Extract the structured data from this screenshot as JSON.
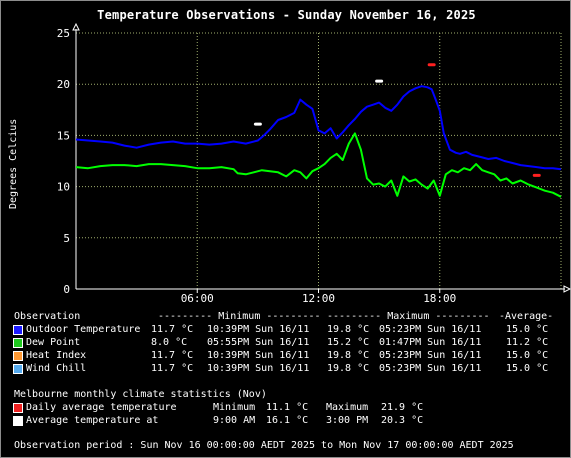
{
  "title": "Temperature Observations - Sunday November 16, 2025",
  "chart_data": {
    "type": "line",
    "title": "Temperature Observations - Sunday November 16, 2025",
    "ylabel": "Degrees Celcius",
    "xlabel": "",
    "xlim": [
      0,
      24
    ],
    "ylim": [
      0,
      25
    ],
    "x_ticks": [
      "06:00",
      "12:00",
      "18:00"
    ],
    "y_ticks": [
      "0",
      "5",
      "10",
      "15",
      "20",
      "25"
    ],
    "grid": true,
    "series": [
      {
        "name": "Outdoor Temperature",
        "color": "#0000ff",
        "x": [
          0,
          0.6,
          1.2,
          1.8,
          2.4,
          3.0,
          3.6,
          4.2,
          4.8,
          5.4,
          6.0,
          6.6,
          7.2,
          7.8,
          8.4,
          9.0,
          9.3,
          9.6,
          10.0,
          10.4,
          10.8,
          11.1,
          11.4,
          11.7,
          12.0,
          12.3,
          12.6,
          12.9,
          13.2,
          13.5,
          13.8,
          14.1,
          14.4,
          14.7,
          15.0,
          15.3,
          15.6,
          15.9,
          16.2,
          16.5,
          16.8,
          17.1,
          17.4,
          17.6,
          17.8,
          18.0,
          18.2,
          18.5,
          18.8,
          19.0,
          19.3,
          19.6,
          20.0,
          20.4,
          20.8,
          21.2,
          21.6,
          22.0,
          22.4,
          22.8,
          23.2,
          23.6,
          24.0
        ],
        "y": [
          14.6,
          14.5,
          14.4,
          14.3,
          14.0,
          13.8,
          14.1,
          14.3,
          14.4,
          14.2,
          14.2,
          14.1,
          14.2,
          14.4,
          14.2,
          14.5,
          15.0,
          15.6,
          16.5,
          16.8,
          17.2,
          18.5,
          18.0,
          17.6,
          15.5,
          15.2,
          15.7,
          14.7,
          15.3,
          16.0,
          16.6,
          17.3,
          17.8,
          18.0,
          18.2,
          17.7,
          17.4,
          18.0,
          18.8,
          19.3,
          19.6,
          19.8,
          19.7,
          19.5,
          18.5,
          17.4,
          15.2,
          13.6,
          13.3,
          13.2,
          13.4,
          13.1,
          12.9,
          12.7,
          12.8,
          12.5,
          12.3,
          12.1,
          12.0,
          11.9,
          11.8,
          11.8,
          11.7
        ]
      },
      {
        "name": "Dew Point",
        "color": "#00ff00",
        "x": [
          0,
          0.6,
          1.2,
          1.8,
          2.4,
          3.0,
          3.6,
          4.2,
          4.8,
          5.4,
          6.0,
          6.6,
          7.2,
          7.8,
          8.0,
          8.4,
          8.8,
          9.2,
          9.6,
          10.0,
          10.4,
          10.8,
          11.1,
          11.4,
          11.7,
          12.0,
          12.3,
          12.6,
          12.9,
          13.2,
          13.5,
          13.8,
          14.1,
          14.4,
          14.7,
          15.0,
          15.3,
          15.6,
          15.9,
          16.2,
          16.5,
          16.8,
          17.1,
          17.4,
          17.7,
          18.0,
          18.3,
          18.6,
          18.9,
          19.2,
          19.5,
          19.8,
          20.1,
          20.4,
          20.7,
          21.0,
          21.3,
          21.6,
          22.0,
          22.4,
          22.8,
          23.2,
          23.6,
          24.0
        ],
        "y": [
          11.9,
          11.8,
          12.0,
          12.1,
          12.1,
          12.0,
          12.2,
          12.2,
          12.1,
          12.0,
          11.8,
          11.8,
          11.9,
          11.7,
          11.3,
          11.2,
          11.4,
          11.6,
          11.5,
          11.4,
          11.0,
          11.6,
          11.4,
          10.8,
          11.5,
          11.8,
          12.2,
          12.8,
          13.2,
          12.6,
          14.2,
          15.2,
          13.6,
          10.8,
          10.2,
          10.3,
          10.0,
          10.6,
          9.1,
          11.0,
          10.5,
          10.7,
          10.2,
          9.8,
          10.6,
          9.1,
          11.2,
          11.6,
          11.4,
          11.8,
          11.6,
          12.2,
          11.6,
          11.4,
          11.2,
          10.6,
          10.8,
          10.3,
          10.6,
          10.2,
          9.9,
          9.6,
          9.4,
          9.0
        ]
      }
    ],
    "climate_markers": [
      {
        "name": "Daily average temperature",
        "color": "#ff2020",
        "x": [
          17.6,
          22.8
        ],
        "y": [
          21.9,
          11.1
        ]
      },
      {
        "name": "Average temperature at",
        "color": "#ffffff",
        "x": [
          9.0,
          15.0
        ],
        "y": [
          16.1,
          20.3
        ]
      }
    ]
  },
  "legend": {
    "header": {
      "observation": "Observation",
      "minimum": "--------- Minimum ---------",
      "maximum": "--------- Maximum ---------",
      "average": "-Average-"
    },
    "rows": [
      {
        "name": "Outdoor Temperature",
        "color": "#1c1cff",
        "min": "11.7 °C",
        "min_time": "10:39PM Sun 16/11",
        "max": "19.8 °C",
        "max_time": "05:23PM Sun 16/11",
        "avg": "15.0 °C"
      },
      {
        "name": "Dew Point",
        "color": "#1ec81e",
        "min": "8.0 °C",
        "min_time": "05:55PM Sun 16/11",
        "max": "15.2 °C",
        "max_time": "01:47PM Sun 16/11",
        "avg": "11.2 °C"
      },
      {
        "name": "Heat Index",
        "color": "#ff9933",
        "min": "11.7 °C",
        "min_time": "10:39PM Sun 16/11",
        "max": "19.8 °C",
        "max_time": "05:23PM Sun 16/11",
        "avg": "15.0 °C"
      },
      {
        "name": "Wind Chill",
        "color": "#55aaee",
        "min": "11.7 °C",
        "min_time": "10:39PM Sun 16/11",
        "max": "19.8 °C",
        "max_time": "05:23PM Sun 16/11",
        "avg": "15.0 °C"
      }
    ]
  },
  "climate": {
    "heading": "Melbourne monthly climate statistics (Nov)",
    "rows": [
      {
        "label": "Daily average temperature",
        "color": "#ee2020",
        "part1_label": "Minimum",
        "part1_value": "11.1 °C",
        "part2_label": "Maximum",
        "part2_value": "21.9 °C"
      },
      {
        "label": "Average temperature at",
        "color": "#ffffff",
        "part1_label": "9:00 AM",
        "part1_value": "16.1 °C",
        "part2_label": "3:00 PM",
        "part2_value": "20.3 °C"
      }
    ]
  },
  "footer": "Observation period : Sun Nov 16 00:00:00 AEDT 2025 to Mon Nov 17 00:00:00 AEDT 2025"
}
